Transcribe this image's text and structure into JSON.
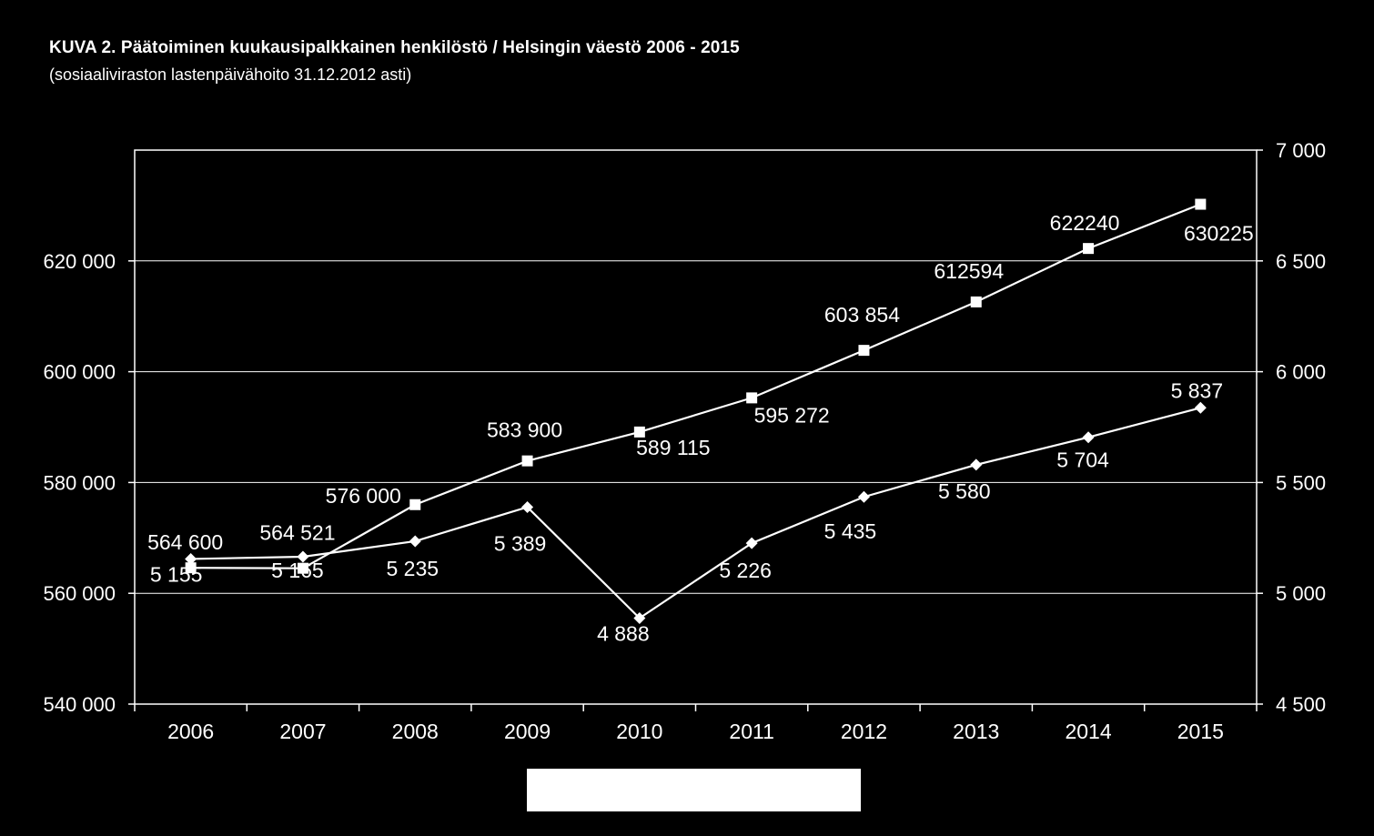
{
  "title": "KUVA  2. Päätoiminen kuukausipalkkainen henkilöstö / Helsingin väestö 2006 - 2015",
  "subtitle": "(sosiaaliviraston lastenpäivähoito 31.12.2012 asti)",
  "colors": {
    "background": "#000000",
    "foreground": "#ffffff"
  },
  "chart_data": {
    "type": "line",
    "categories": [
      "2006",
      "2007",
      "2008",
      "2009",
      "2010",
      "2011",
      "2012",
      "2013",
      "2014",
      "2015"
    ],
    "grid": true,
    "legend": "bottom",
    "y_left": {
      "range": [
        540000,
        640000
      ],
      "ticks": [
        540000,
        560000,
        580000,
        600000,
        620000
      ],
      "tick_labels": [
        "540 000",
        "560 000",
        "580 000",
        "600 000",
        "620 000"
      ]
    },
    "y_right": {
      "range": [
        4500,
        7000
      ],
      "ticks": [
        4500,
        5000,
        5500,
        6000,
        6500,
        7000
      ],
      "tick_labels": [
        "4 500",
        "5 000",
        "5 500",
        "6 000",
        "6 500",
        "7 000"
      ]
    },
    "series": [
      {
        "axis": "left",
        "marker": "square",
        "values": [
          564600,
          564521,
          576000,
          583900,
          589115,
          595272,
          603854,
          612594,
          622240,
          630225
        ],
        "labels": [
          "564 600",
          "564 521",
          "576 000",
          "583 900",
          "589 115",
          "595 272",
          "603 854",
          "612594",
          "622240",
          "630225"
        ]
      },
      {
        "axis": "right",
        "marker": "diamond",
        "values": [
          5155,
          5165,
          5235,
          5389,
          4888,
          5226,
          5435,
          5580,
          5704,
          5837
        ],
        "labels": [
          "5 155",
          "5 165",
          "5 235",
          "5 389",
          "4 888",
          "5 226",
          "5 435",
          "5 580",
          "5 704",
          "5 837"
        ]
      }
    ]
  }
}
